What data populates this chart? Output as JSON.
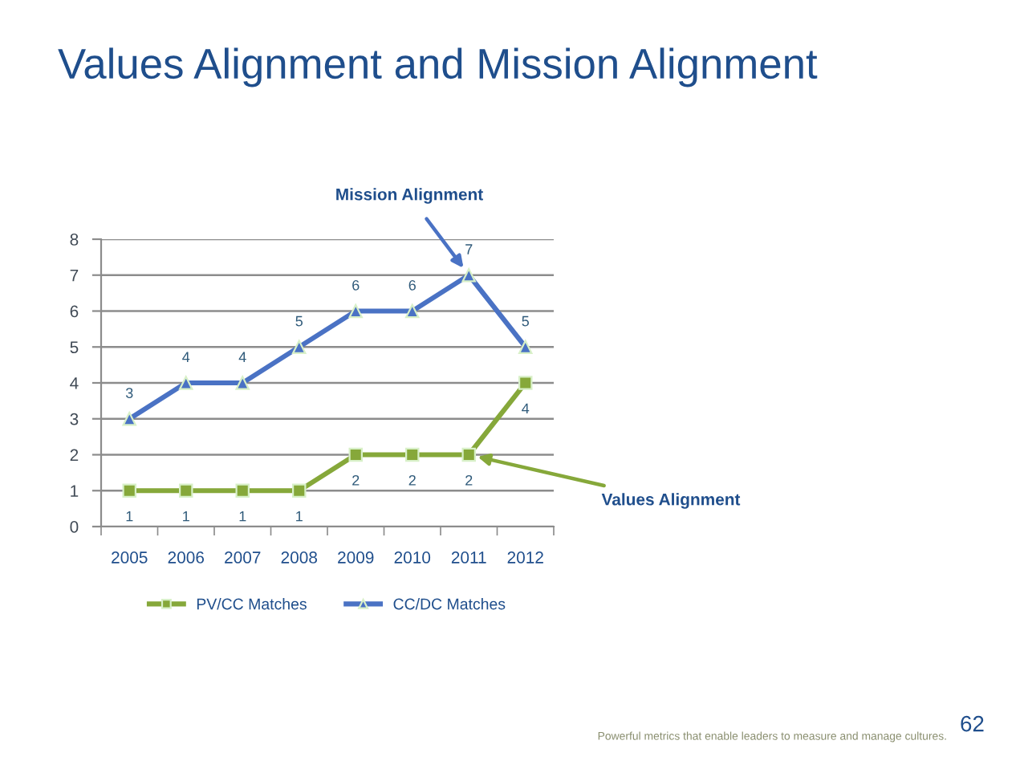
{
  "chart_data": {
    "type": "line",
    "title": "Values Alignment and Mission Alignment",
    "categories": [
      "2005",
      "2006",
      "2007",
      "2008",
      "2009",
      "2010",
      "2011",
      "2012"
    ],
    "series": [
      {
        "name": "PV/CC Matches",
        "color": "#86a83a",
        "marker": "square",
        "values": [
          1,
          1,
          1,
          1,
          2,
          2,
          2,
          4
        ]
      },
      {
        "name": "CC/DC Matches",
        "color": "#4a72c4",
        "marker": "triangle",
        "values": [
          3,
          4,
          4,
          5,
          6,
          6,
          7,
          5
        ]
      }
    ],
    "ylim": [
      0,
      8
    ],
    "yticks": [
      0,
      1,
      2,
      3,
      4,
      5,
      6,
      7,
      8
    ],
    "grid": "y",
    "legend": "bottom",
    "data_labels": true,
    "line_style": "solid",
    "annotations": [
      {
        "text": "Mission Alignment",
        "x": "2011",
        "y": 7
      },
      {
        "text": "Values Alignment",
        "x": "2011",
        "y": 2
      },
      "Powerful metrics that enable leaders to measure and manage cultures.",
      "62"
    ]
  }
}
